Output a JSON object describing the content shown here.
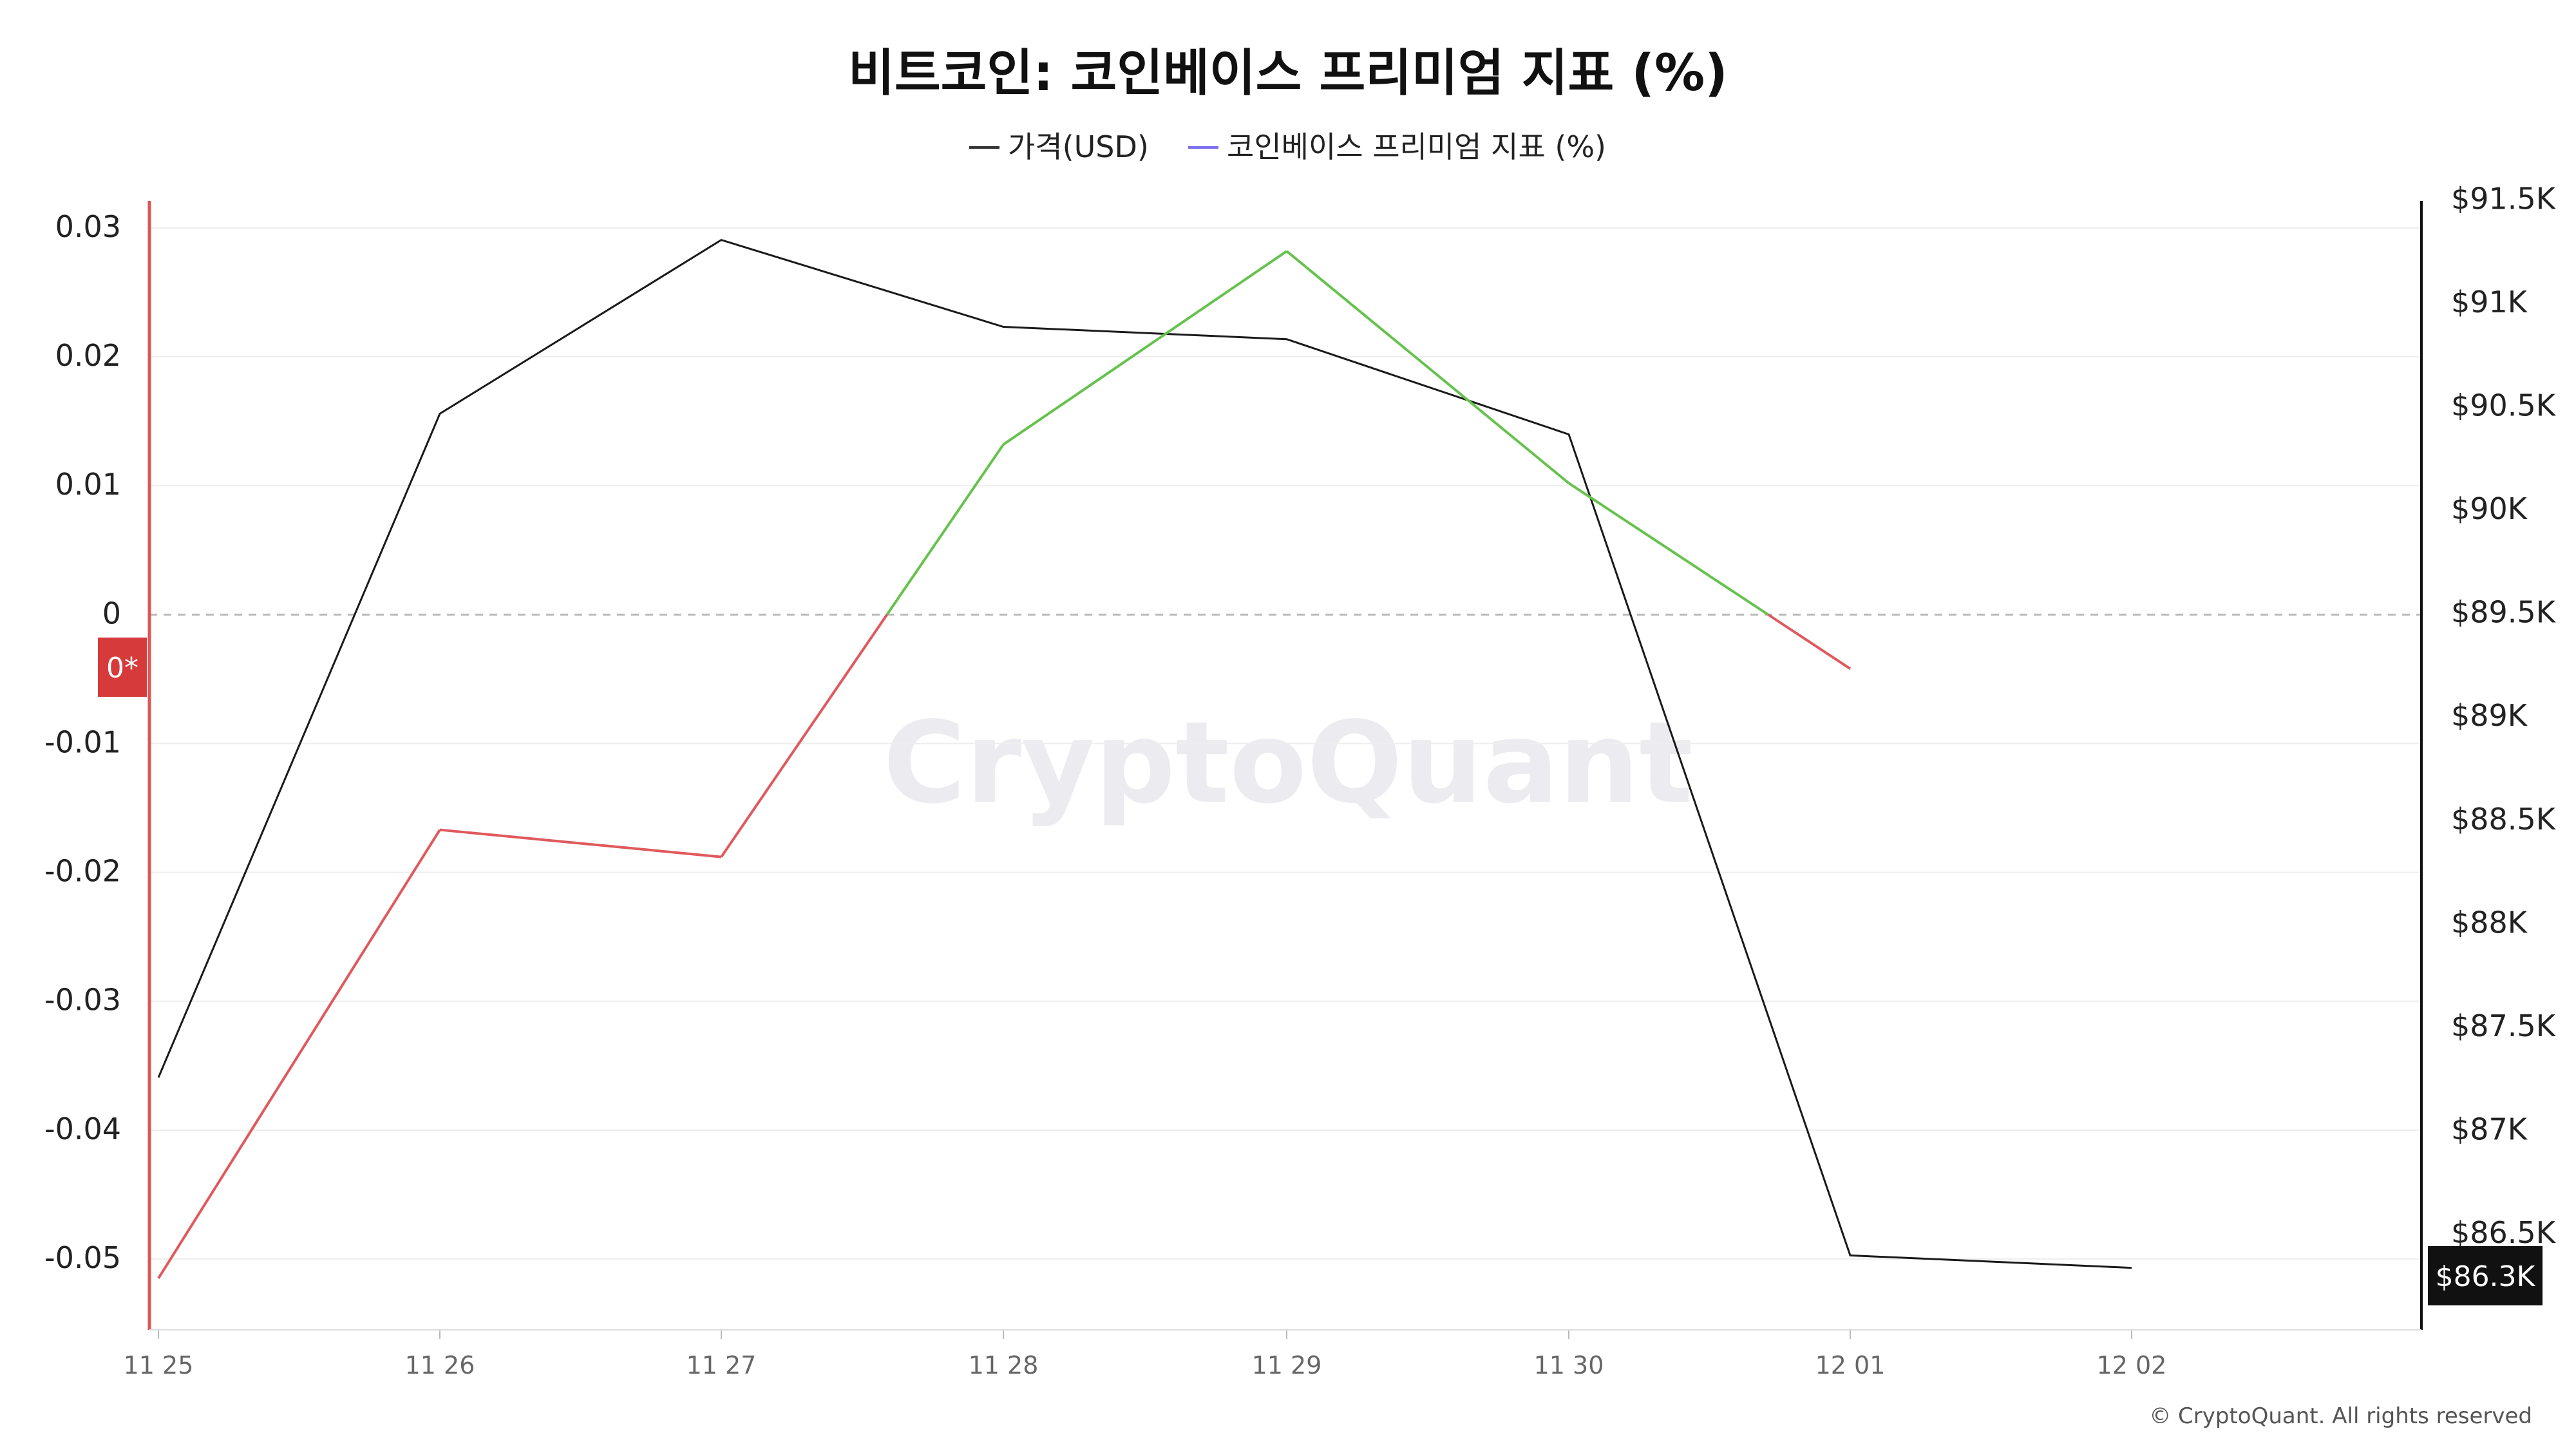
{
  "header": {
    "title": "비트코인: 코인베이스 프리미엄 지표 (%)"
  },
  "legend": [
    {
      "label": "가격(USD)",
      "color": "#333333"
    },
    {
      "label": "코인베이스 프리미엄 지표 (%)",
      "color": "#7b6ef0"
    }
  ],
  "watermark": "CryptoQuant",
  "copyright": "© CryptoQuant. All rights reserved",
  "current_premium_badge": "0*",
  "current_price_badge": "$86.3K",
  "colors": {
    "positive": "#66c24d",
    "negative": "#e0595c",
    "price_line": "#1a1a1a",
    "zero_line": "#bbbbbb",
    "grid": "#eeeeee",
    "left_axis": "#e05555",
    "badge_red": "#d63a3a",
    "badge_black": "#111111"
  },
  "chart_data": {
    "type": "line",
    "x": [
      "11 25",
      "11 26",
      "11 27",
      "11 28",
      "11 29",
      "11 30",
      "12 01",
      "12 02"
    ],
    "series": [
      {
        "name": "가격(USD)",
        "axis": "right",
        "values": [
          87250,
          90460,
          91300,
          90880,
          90820,
          90360,
          86390,
          86330
        ]
      },
      {
        "name": "코인베이스 프리미엄 지표 (%)",
        "axis": "left",
        "values": [
          -0.0515,
          -0.0167,
          -0.0188,
          0.0132,
          0.0282,
          0.0102,
          -0.0042,
          null
        ]
      }
    ],
    "y_left": {
      "ticks": [
        "0.03",
        "0.02",
        "0.01",
        "0",
        "-0.01",
        "-0.02",
        "-0.03",
        "-0.04",
        "-0.05"
      ],
      "tick_values": [
        0.03,
        0.02,
        0.01,
        0,
        -0.01,
        -0.02,
        -0.03,
        -0.04,
        -0.05
      ],
      "range": [
        -0.0555,
        0.0318
      ]
    },
    "y_right": {
      "ticks": [
        "$91.5K",
        "$91K",
        "$90.5K",
        "$90K",
        "$89.5K",
        "$89K",
        "$88.5K",
        "$88K",
        "$87.5K",
        "$87K",
        "$86.5K"
      ],
      "tick_values": [
        91500,
        91000,
        90500,
        90000,
        89500,
        89000,
        88500,
        88000,
        87500,
        87000,
        86500
      ],
      "range": [
        86030,
        91470
      ]
    },
    "grid": true,
    "legend_position": "top-center"
  }
}
